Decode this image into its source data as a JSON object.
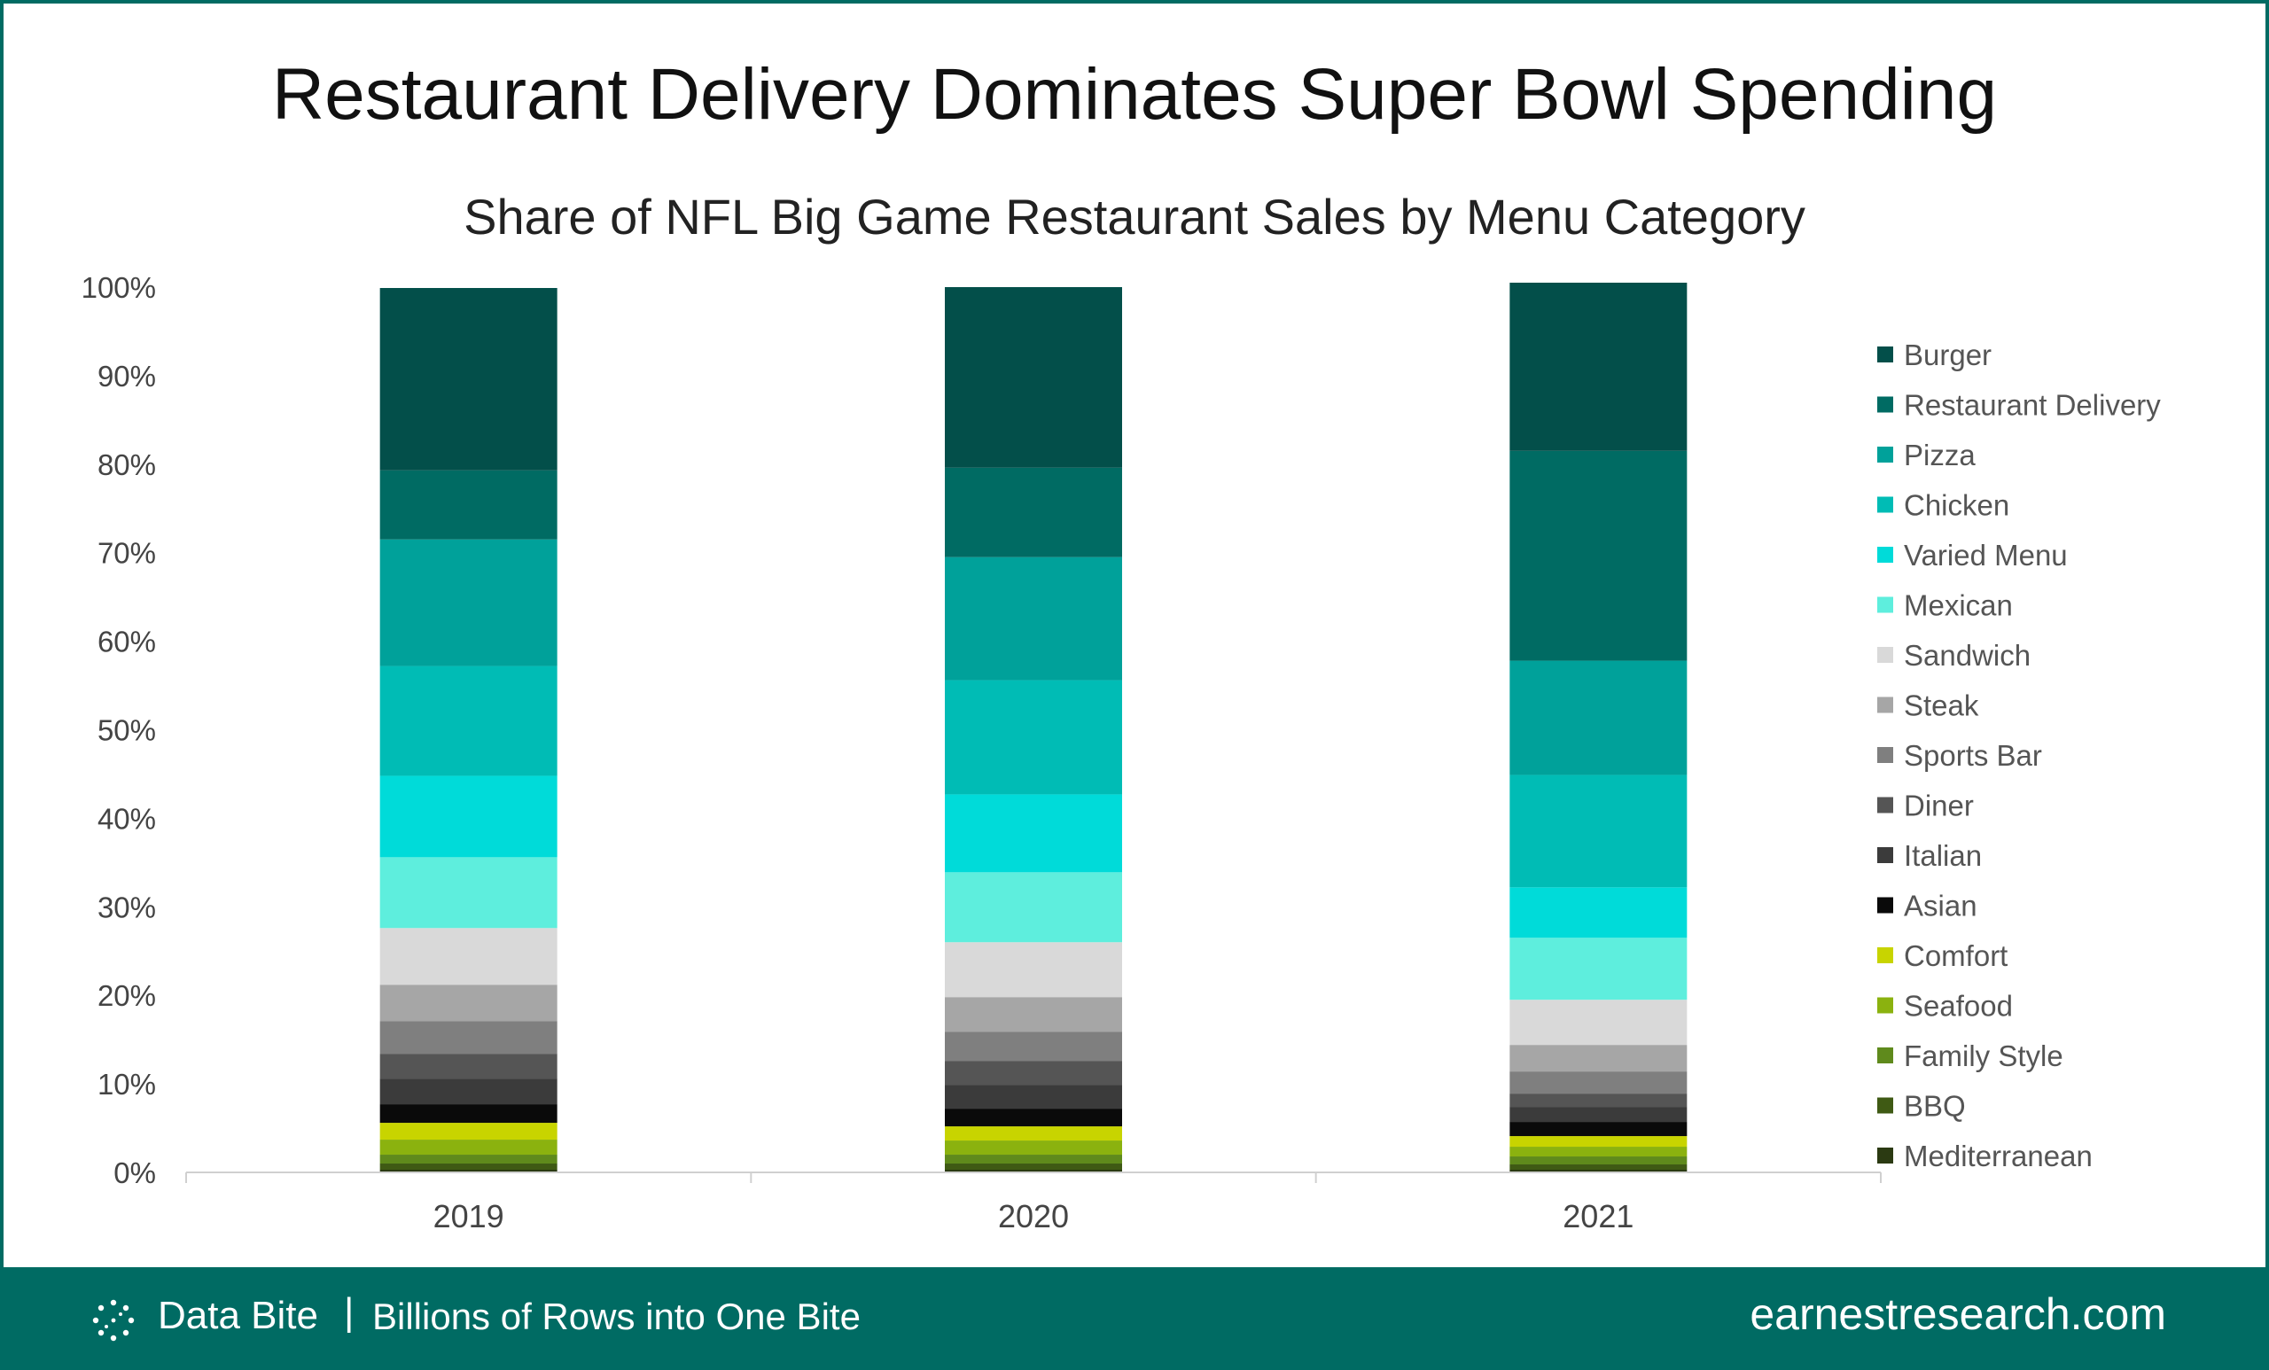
{
  "header": {
    "title": "Restaurant Delivery Dominates Super Bowl Spending",
    "subtitle": "Share of NFL Big Game Restaurant Sales by Menu Category"
  },
  "chart_data": {
    "type": "bar",
    "stacked": true,
    "title": "Share of NFL Big Game Restaurant Sales by Menu Category",
    "xlabel": "",
    "ylabel": "",
    "ylim": [
      0,
      100
    ],
    "y_ticks": [
      "0%",
      "10%",
      "20%",
      "30%",
      "40%",
      "50%",
      "60%",
      "70%",
      "80%",
      "90%",
      "100%"
    ],
    "categories": [
      "2019",
      "2020",
      "2021"
    ],
    "legend_position": "right",
    "series": [
      {
        "name": "Mediterranean",
        "color": "#2b3a12",
        "values": [
          0.3,
          0.3,
          0.3
        ]
      },
      {
        "name": "BBQ",
        "color": "#3f5a14",
        "values": [
          0.7,
          0.7,
          0.6
        ]
      },
      {
        "name": "Family Style",
        "color": "#5f8a1c",
        "values": [
          1.0,
          1.0,
          0.9
        ]
      },
      {
        "name": "Seafood",
        "color": "#8bb20f",
        "values": [
          1.7,
          1.6,
          1.1
        ]
      },
      {
        "name": "Comfort",
        "color": "#c8d400",
        "values": [
          1.9,
          1.6,
          1.2
        ]
      },
      {
        "name": "Asian",
        "color": "#0a0a0a",
        "values": [
          2.1,
          2.0,
          1.6
        ]
      },
      {
        "name": "Italian",
        "color": "#3b3b3b",
        "values": [
          2.9,
          2.7,
          1.7
        ]
      },
      {
        "name": "Diner",
        "color": "#555555",
        "values": [
          2.8,
          2.7,
          1.5
        ]
      },
      {
        "name": "Sports Bar",
        "color": "#7f7f7f",
        "values": [
          3.7,
          3.3,
          2.5
        ]
      },
      {
        "name": "Steak",
        "color": "#a6a6a6",
        "values": [
          4.1,
          3.9,
          3.0
        ]
      },
      {
        "name": "Sandwich",
        "color": "#d9d9d9",
        "values": [
          6.4,
          6.2,
          5.1
        ]
      },
      {
        "name": "Mexican",
        "color": "#5eeedd",
        "values": [
          8.0,
          7.9,
          7.0
        ]
      },
      {
        "name": "Varied Menu",
        "color": "#00dbd9",
        "values": [
          9.2,
          8.8,
          5.7
        ]
      },
      {
        "name": "Chicken",
        "color": "#00bcb5",
        "values": [
          12.4,
          12.9,
          12.7
        ]
      },
      {
        "name": "Pizza",
        "color": "#00a19a",
        "values": [
          14.3,
          13.9,
          12.9
        ]
      },
      {
        "name": "Restaurant Delivery",
        "color": "#006b63",
        "values": [
          7.8,
          10.1,
          23.7
        ]
      },
      {
        "name": "Burger",
        "color": "#034f4a",
        "values": [
          20.6,
          20.4,
          19.0
        ]
      }
    ],
    "legend_order": [
      "Burger",
      "Restaurant Delivery",
      "Pizza",
      "Chicken",
      "Varied Menu",
      "Mexican",
      "Sandwich",
      "Steak",
      "Sports Bar",
      "Diner",
      "Italian",
      "Asian",
      "Comfort",
      "Seafood",
      "Family Style",
      "BBQ",
      "Mediterranean"
    ]
  },
  "footer": {
    "brand": "Data Bite",
    "separator": "|",
    "tagline": "Billions of Rows into One Bite",
    "site": "earnestresearch.com",
    "logo_icon": "dotted-circle-icon"
  },
  "colors": {
    "brand": "#006b63",
    "text": "#111111"
  }
}
